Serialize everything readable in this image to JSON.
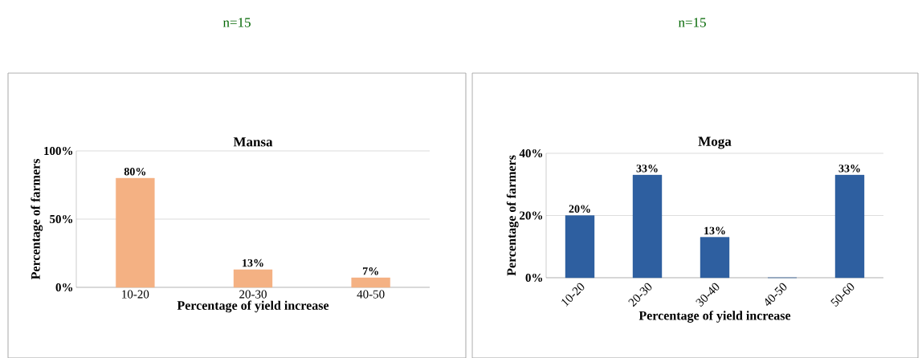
{
  "chart_data": [
    {
      "type": "bar",
      "title": "Mansa",
      "annotations": [
        "n=15"
      ],
      "categories": [
        "10-20",
        "20-30",
        "40-50"
      ],
      "values": [
        80,
        13,
        7
      ],
      "value_labels": [
        "80%",
        "13%",
        "7%"
      ],
      "color": "#f4b183",
      "ylim": [
        0,
        100
      ],
      "yticks": [
        {
          "value": 0,
          "label": "0%"
        },
        {
          "value": 50,
          "label": "50%"
        },
        {
          "value": 100,
          "label": "100%"
        }
      ],
      "grid": "y",
      "xlabel": "Percentage of yield increase",
      "ylabel": "Percentage of farmers"
    },
    {
      "type": "bar",
      "title": "Moga",
      "annotations": [
        "n=15"
      ],
      "categories": [
        "10-20",
        "20-30",
        "30-40",
        "40-50",
        "50-60"
      ],
      "values": [
        20,
        33,
        13,
        0,
        33
      ],
      "value_labels": [
        "20%",
        "33%",
        "13%",
        null,
        "33%"
      ],
      "color": "#2e5fa0",
      "ylim": [
        0,
        40
      ],
      "yticks": [
        {
          "value": 0,
          "label": "0%"
        },
        {
          "value": 20,
          "label": "20%"
        },
        {
          "value": 40,
          "label": "40%"
        }
      ],
      "grid": "y",
      "xlabel": "Percentage of yield increase",
      "ylabel": "Percentage of farmers"
    }
  ]
}
